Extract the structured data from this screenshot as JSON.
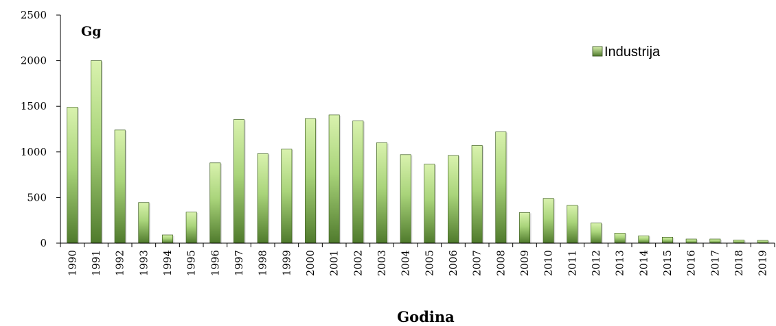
{
  "chart_data": {
    "type": "bar",
    "unit_label": "Gg",
    "xlabel": "Godina",
    "ylabel": "",
    "ylim": [
      0,
      2500
    ],
    "yticks": [
      0,
      500,
      1000,
      1500,
      2000,
      2500
    ],
    "legend_position": "top-right",
    "grid": false,
    "categories": [
      "1990",
      "1991",
      "1992",
      "1993",
      "1994",
      "1995",
      "1996",
      "1997",
      "1998",
      "1999",
      "2000",
      "2001",
      "2002",
      "2003",
      "2004",
      "2005",
      "2006",
      "2007",
      "2008",
      "2009",
      "2010",
      "2011",
      "2012",
      "2013",
      "2014",
      "2015",
      "2016",
      "2017",
      "2018",
      "2019"
    ],
    "series": [
      {
        "name": "Industrija",
        "color": "#8cb85a",
        "values": [
          1490,
          2000,
          1240,
          445,
          90,
          340,
          880,
          1355,
          980,
          1030,
          1365,
          1405,
          1340,
          1100,
          970,
          865,
          960,
          1070,
          1220,
          335,
          490,
          415,
          220,
          110,
          80,
          65,
          45,
          45,
          35,
          30
        ]
      }
    ]
  }
}
